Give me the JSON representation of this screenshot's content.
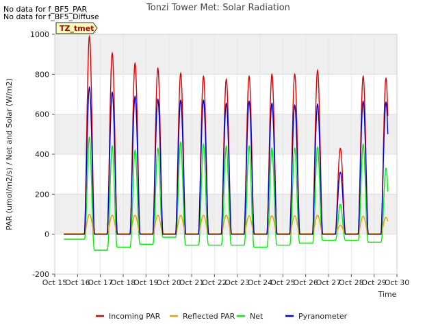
{
  "notes": [
    "No data for f_BF5_PAR",
    "No data for f_BF5_Diffuse"
  ],
  "chart_data": {
    "type": "line",
    "title": "Tonzi Tower Met: Solar Radiation",
    "xlabel": "Time",
    "ylabel": "PAR (umol/m2/s) / Net and Solar (W/m2)",
    "ylim": [
      -200,
      1000
    ],
    "xlim": [
      15,
      30
    ],
    "yticks": [
      -200,
      0,
      200,
      400,
      600,
      800,
      1000
    ],
    "xticks": [
      15,
      16,
      17,
      18,
      19,
      20,
      21,
      22,
      23,
      24,
      25,
      26,
      27,
      28,
      29,
      30
    ],
    "xtick_labels": [
      "Oct 15",
      "Oct 16",
      "Oct 17",
      "Oct 18",
      "Oct 19",
      "Oct 20",
      "Oct 21",
      "Oct 22",
      "Oct 23",
      "Oct 24",
      "Oct 25",
      "Oct 26",
      "Oct 27",
      "Oct 28",
      "Oct 29",
      "Oct 30"
    ],
    "grid": true,
    "legend_position": "bottom",
    "annotation": "TZ_tmet",
    "days": [
      16,
      17,
      18,
      19,
      20,
      21,
      22,
      23,
      24,
      25,
      26,
      27,
      28,
      29
    ],
    "series": [
      {
        "name": "Incoming PAR",
        "color": "#dd0000",
        "daily_peak": [
          990,
          905,
          855,
          830,
          805,
          790,
          775,
          790,
          800,
          800,
          820,
          430,
          790,
          780
        ]
      },
      {
        "name": "Reflected PAR",
        "color": "#e6a000",
        "daily_peak": [
          100,
          95,
          95,
          95,
          95,
          95,
          95,
          92,
          92,
          92,
          95,
          45,
          90,
          85
        ]
      },
      {
        "name": "Net",
        "color": "#00ee00",
        "daily_peak": [
          485,
          440,
          420,
          430,
          460,
          450,
          440,
          440,
          430,
          430,
          435,
          150,
          450,
          330
        ],
        "night_level": [
          -25,
          -80,
          -65,
          -50,
          -15,
          -55,
          -55,
          -55,
          -65,
          -55,
          -45,
          -30,
          -30,
          -40,
          -35
        ]
      },
      {
        "name": "Pyranometer",
        "color": "#0000cc",
        "daily_peak": [
          735,
          710,
          690,
          675,
          670,
          670,
          655,
          665,
          655,
          645,
          650,
          310,
          665,
          660
        ]
      }
    ]
  }
}
